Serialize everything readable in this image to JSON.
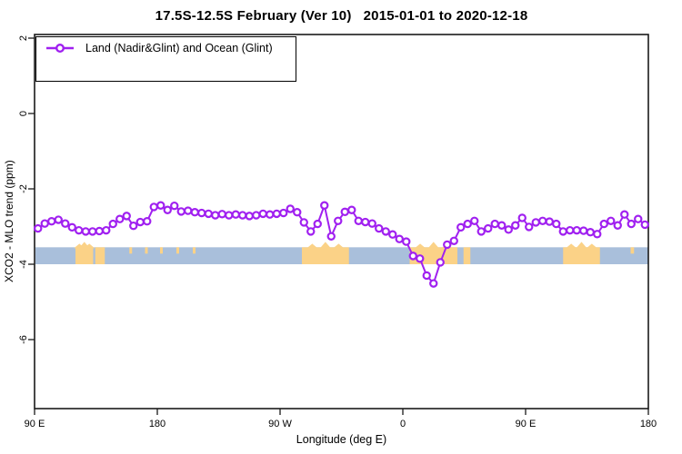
{
  "chart_data": {
    "type": "line",
    "title": "17.5S-12.5S February (Ver 10)   2015-01-01 to 2020-12-18",
    "xlabel": "Longitude (deg E)",
    "ylabel": "XCO2 - MLO trend (ppm)",
    "xlim": [
      90,
      540
    ],
    "ylim": [
      -7.8,
      2.1
    ],
    "grid": false,
    "legend_position": "top-left",
    "x_ticks": [
      {
        "pos": 90,
        "label": "90 E"
      },
      {
        "pos": 180,
        "label": "180"
      },
      {
        "pos": 270,
        "label": "90 W"
      },
      {
        "pos": 360,
        "label": "0"
      },
      {
        "pos": 450,
        "label": "90 E"
      },
      {
        "pos": 540,
        "label": "180"
      }
    ],
    "y_ticks": [
      {
        "pos": 2,
        "label": "2"
      },
      {
        "pos": 0,
        "label": "0"
      },
      {
        "pos": -2,
        "label": "-2"
      },
      {
        "pos": -4,
        "label": "-4"
      },
      {
        "pos": -6,
        "label": "-6"
      }
    ],
    "series": [
      {
        "name": "Land (Nadir&Glint) and Ocean (Glint)",
        "color": "#A020F0",
        "marker": "open-circle",
        "x": [
          92.5,
          97.5,
          102.5,
          107.5,
          112.5,
          117.5,
          122.5,
          127.5,
          132.5,
          137.5,
          142.5,
          147.5,
          152.5,
          157.5,
          162.5,
          167.5,
          172.5,
          177.5,
          182.5,
          187.5,
          192.5,
          197.5,
          202.5,
          207.5,
          212.5,
          217.5,
          222.5,
          227.5,
          232.5,
          237.5,
          242.5,
          247.5,
          252.5,
          257.5,
          262.5,
          267.5,
          272.5,
          277.5,
          282.5,
          287.5,
          292.5,
          297.5,
          302.5,
          307.5,
          312.5,
          317.5,
          322.5,
          327.5,
          332.5,
          337.5,
          342.5,
          347.5,
          352.5,
          357.5,
          362.5,
          367.5,
          372.5,
          377.5,
          382.5,
          387.5,
          392.5,
          397.5,
          402.5,
          407.5,
          412.5,
          417.5,
          422.5,
          427.5,
          432.5,
          437.5,
          442.5,
          447.5,
          452.5,
          457.5,
          462.5,
          467.5,
          472.5,
          477.5,
          482.5,
          487.5,
          492.5,
          497.5,
          502.5,
          507.5,
          512.5,
          517.5,
          522.5,
          527.5,
          532.5,
          537.5
        ],
        "y": [
          -3.05,
          -2.92,
          -2.86,
          -2.82,
          -2.92,
          -3.02,
          -3.1,
          -3.13,
          -3.13,
          -3.12,
          -3.1,
          -2.93,
          -2.8,
          -2.72,
          -2.98,
          -2.88,
          -2.86,
          -2.48,
          -2.44,
          -2.56,
          -2.45,
          -2.6,
          -2.58,
          -2.62,
          -2.64,
          -2.66,
          -2.7,
          -2.67,
          -2.7,
          -2.68,
          -2.7,
          -2.72,
          -2.7,
          -2.66,
          -2.68,
          -2.66,
          -2.64,
          -2.53,
          -2.62,
          -2.89,
          -3.13,
          -2.93,
          -2.44,
          -3.26,
          -2.85,
          -2.61,
          -2.56,
          -2.85,
          -2.88,
          -2.92,
          -3.05,
          -3.13,
          -3.21,
          -3.33,
          -3.4,
          -3.78,
          -3.85,
          -4.3,
          -4.51,
          -3.95,
          -3.48,
          -3.38,
          -3.02,
          -2.93,
          -2.85,
          -3.13,
          -3.05,
          -2.93,
          -2.97,
          -3.08,
          -2.97,
          -2.77,
          -3.01,
          -2.89,
          -2.85,
          -2.87,
          -2.93,
          -3.13,
          -3.1,
          -3.1,
          -3.11,
          -3.15,
          -3.2,
          -2.93,
          -2.85,
          -2.97,
          -2.68,
          -2.93,
          -2.8,
          -2.95
        ]
      }
    ],
    "surface_band": {
      "y_range": [
        -3.55,
        -4.0
      ],
      "ocean_color": "#A9BFDB",
      "land_color": "#FBD287",
      "land_segments": [
        [
          120,
          133
        ],
        [
          134.5,
          141.5
        ],
        [
          286,
          320.5
        ],
        [
          365,
          400
        ],
        [
          404.5,
          409.5
        ],
        [
          477.5,
          504.5
        ]
      ],
      "land_speckles": [
        [
          159.5,
          161.5
        ],
        [
          171,
          173
        ],
        [
          182,
          184
        ],
        [
          194,
          196
        ],
        [
          206,
          208
        ],
        [
          527,
          529.5
        ]
      ]
    }
  },
  "axis_style": {
    "border_color": "#1a1a1a",
    "tick_color": "#1a1a1a"
  }
}
